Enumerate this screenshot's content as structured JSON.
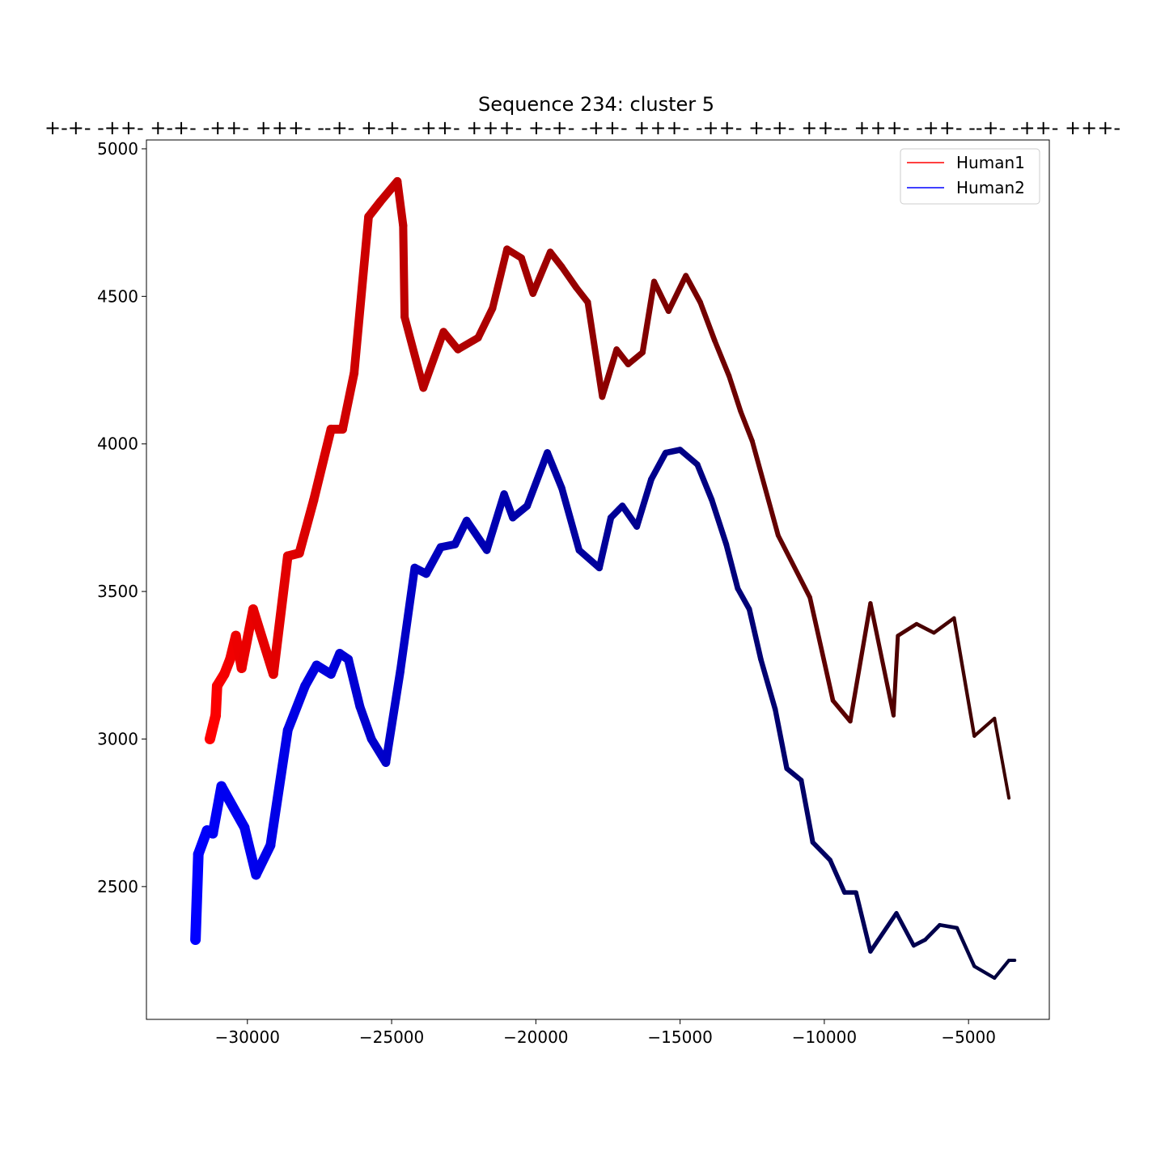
{
  "chart_data": {
    "type": "line",
    "title": "Sequence 234: cluster 5",
    "subtitle": "+-+- -++- +-+- -++- +++- --+- +-+- -++- +++- +-+- -++- +++- -++- +-+- ++-- +++- -++- --+- -++- +++-",
    "xlabel": "",
    "ylabel": "",
    "xlim": [
      -33500,
      -2200
    ],
    "ylim": [
      2050,
      5030
    ],
    "xticks": [
      -30000,
      -25000,
      -20000,
      -15000,
      -10000,
      -5000
    ],
    "xtick_labels": [
      "−30000",
      "−25000",
      "−20000",
      "−15000",
      "−10000",
      "−5000"
    ],
    "yticks": [
      2500,
      3000,
      3500,
      4000,
      4500,
      5000
    ],
    "ytick_labels": [
      "2500",
      "3000",
      "3500",
      "4000",
      "4500",
      "5000"
    ],
    "grid": false,
    "legend_position": "top-right",
    "series": [
      {
        "name": "Human1",
        "color": "#ff0000",
        "end_color": "#3a0000",
        "x": [
          -31300,
          -31100,
          -31050,
          -30800,
          -30600,
          -30400,
          -30200,
          -29800,
          -29100,
          -28600,
          -28200,
          -27700,
          -27100,
          -26700,
          -26300,
          -25800,
          -25400,
          -24800,
          -24600,
          -24550,
          -23900,
          -23200,
          -22700,
          -22000,
          -21500,
          -21000,
          -20500,
          -20100,
          -19500,
          -19100,
          -18600,
          -18200,
          -17700,
          -17200,
          -16800,
          -16300,
          -15900,
          -15400,
          -14800,
          -14300,
          -13800,
          -13300,
          -12900,
          -12500,
          -11600,
          -10500,
          -9700,
          -9100,
          -8400,
          -7600,
          -7450,
          -6800,
          -6200,
          -5500,
          -4800,
          -4100,
          -3600
        ],
        "values": [
          3000,
          3080,
          3180,
          3220,
          3270,
          3350,
          3240,
          3440,
          3220,
          3620,
          3630,
          3810,
          4050,
          4050,
          4240,
          4770,
          4820,
          4890,
          4740,
          4430,
          4190,
          4380,
          4320,
          4360,
          4460,
          4660,
          4630,
          4510,
          4650,
          4600,
          4530,
          4480,
          4160,
          4320,
          4270,
          4310,
          4550,
          4450,
          4570,
          4480,
          4350,
          4230,
          4110,
          4010,
          3690,
          3480,
          3130,
          3060,
          3460,
          3080,
          3350,
          3390,
          3360,
          3410,
          3010,
          3070,
          2800
        ]
      },
      {
        "name": "Human2",
        "color": "#0000ff",
        "end_color": "#00003a",
        "x": [
          -31800,
          -31700,
          -31400,
          -31200,
          -30900,
          -30100,
          -29700,
          -29200,
          -28600,
          -28000,
          -27600,
          -27100,
          -26800,
          -26500,
          -26100,
          -25700,
          -25200,
          -24700,
          -24200,
          -23800,
          -23300,
          -22800,
          -22400,
          -21700,
          -21100,
          -20800,
          -20300,
          -19600,
          -19100,
          -18500,
          -17800,
          -17400,
          -17000,
          -16500,
          -16000,
          -15500,
          -15000,
          -14400,
          -13900,
          -13400,
          -13000,
          -12600,
          -12200,
          -11700,
          -11300,
          -10800,
          -10400,
          -9800,
          -9300,
          -8900,
          -8400,
          -7500,
          -6900,
          -6500,
          -6000,
          -5400,
          -4800,
          -4100,
          -3600,
          -3400
        ],
        "values": [
          2320,
          2610,
          2690,
          2680,
          2840,
          2700,
          2540,
          2640,
          3030,
          3180,
          3250,
          3220,
          3290,
          3270,
          3110,
          3000,
          2920,
          3230,
          3580,
          3560,
          3650,
          3660,
          3740,
          3640,
          3830,
          3750,
          3790,
          3970,
          3850,
          3640,
          3580,
          3750,
          3790,
          3720,
          3880,
          3970,
          3980,
          3930,
          3810,
          3660,
          3510,
          3440,
          3270,
          3100,
          2900,
          2860,
          2650,
          2590,
          2480,
          2480,
          2280,
          2410,
          2300,
          2320,
          2370,
          2360,
          2230,
          2190,
          2250,
          2250
        ]
      }
    ]
  }
}
